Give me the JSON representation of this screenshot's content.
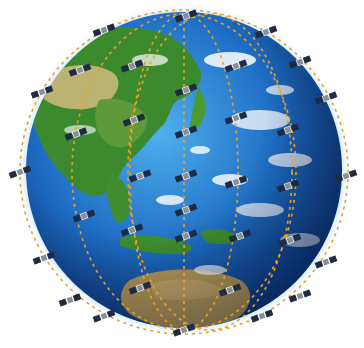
{
  "scene": {
    "subject": "satellite-constellation-around-earth",
    "globe_view": "asia-pacific",
    "background_color": "#ffffff",
    "colors": {
      "ocean_deep": "#0b3d8c",
      "ocean_light": "#3f9be0",
      "land_green": "#3c8a2e",
      "land_tan": "#c9b77a",
      "clouds": "#ffffff",
      "orbit_path": "#f0a020",
      "satellite_body": "#8a8f96",
      "solar_panel": "#1f2a44",
      "atmosphere_glow": "#9fd4ff"
    }
  }
}
